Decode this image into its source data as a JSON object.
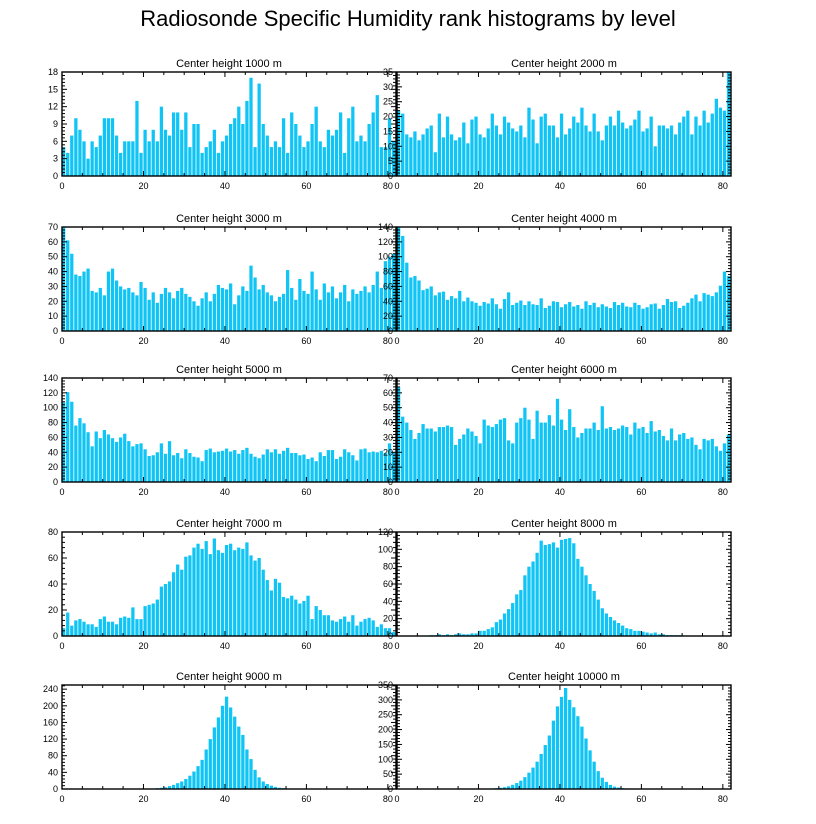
{
  "figure": {
    "title": "Radiosonde Specific Humidity rank histograms by level"
  },
  "colors": {
    "bar": "#10C5F5",
    "axis": "#000000",
    "background": "#ffffff"
  },
  "chart_data": [
    {
      "type": "bar",
      "title": "Center height 1000 m",
      "xlim": [
        0,
        82
      ],
      "ylim": [
        0,
        18
      ],
      "xticks": [
        0,
        20,
        40,
        60,
        80
      ],
      "yticks": [
        0,
        3,
        6,
        9,
        12,
        15,
        18
      ],
      "values": [
        5,
        4,
        7,
        10,
        8,
        6,
        3,
        6,
        5,
        7,
        10,
        10,
        10,
        7,
        4,
        6,
        6,
        6,
        13,
        4,
        8,
        6,
        8,
        6,
        12,
        8,
        7,
        11,
        11,
        8,
        11,
        5,
        9,
        9,
        4,
        5,
        6,
        8,
        4,
        6,
        7,
        9,
        10,
        12,
        9,
        13,
        17,
        5,
        16,
        9,
        7,
        5,
        6,
        5,
        10,
        4,
        11,
        9,
        7,
        5,
        6,
        9,
        12,
        6,
        5,
        8,
        7,
        8,
        11,
        4,
        10,
        12,
        6,
        7,
        6,
        9,
        11,
        14,
        5,
        5,
        10,
        6
      ]
    },
    {
      "type": "bar",
      "title": "Center height 2000 m",
      "xlim": [
        0,
        82
      ],
      "ylim": [
        0,
        35
      ],
      "xticks": [
        0,
        20,
        40,
        60,
        80
      ],
      "yticks": [
        0,
        5,
        10,
        15,
        20,
        25,
        30,
        35
      ],
      "values": [
        22,
        21,
        14,
        13,
        15,
        12,
        14,
        16,
        17,
        8,
        21,
        13,
        20,
        14,
        12,
        13,
        18,
        11,
        19,
        20,
        14,
        13,
        16,
        21,
        17,
        14,
        20,
        18,
        16,
        15,
        17,
        13,
        23,
        19,
        11,
        20,
        21,
        17,
        17,
        13,
        21,
        14,
        16,
        20,
        18,
        23,
        17,
        15,
        21,
        15,
        12,
        17,
        20,
        17,
        22,
        18,
        16,
        17,
        19,
        22,
        15,
        16,
        20,
        10,
        17,
        17,
        16,
        17,
        14,
        18,
        20,
        22,
        14,
        20,
        17,
        22,
        18,
        21,
        26,
        23,
        22,
        35
      ]
    },
    {
      "type": "bar",
      "title": "Center height 3000 m",
      "xlim": [
        0,
        82
      ],
      "ylim": [
        0,
        70
      ],
      "xticks": [
        0,
        20,
        40,
        60,
        80
      ],
      "yticks": [
        0,
        10,
        20,
        30,
        40,
        50,
        60,
        70
      ],
      "values": [
        70,
        61,
        52,
        38,
        37,
        40,
        42,
        27,
        26,
        29,
        24,
        40,
        42,
        34,
        30,
        28,
        29,
        26,
        24,
        33,
        29,
        21,
        26,
        19,
        25,
        29,
        26,
        22,
        27,
        29,
        25,
        23,
        20,
        17,
        22,
        26,
        20,
        25,
        31,
        29,
        28,
        32,
        18,
        24,
        30,
        27,
        44,
        36,
        28,
        31,
        26,
        24,
        20,
        23,
        25,
        41,
        29,
        21,
        35,
        27,
        25,
        40,
        28,
        21,
        32,
        26,
        30,
        22,
        26,
        31,
        20,
        28,
        25,
        27,
        30,
        26,
        31,
        40,
        29,
        47,
        50,
        52
      ]
    },
    {
      "type": "bar",
      "title": "Center height 4000 m",
      "xlim": [
        0,
        82
      ],
      "ylim": [
        0,
        140
      ],
      "xticks": [
        0,
        20,
        40,
        60,
        80
      ],
      "yticks": [
        0,
        20,
        40,
        60,
        80,
        100,
        120,
        140
      ],
      "values": [
        140,
        128,
        92,
        72,
        74,
        68,
        55,
        57,
        60,
        48,
        52,
        53,
        42,
        47,
        44,
        54,
        40,
        45,
        40,
        38,
        34,
        39,
        37,
        44,
        36,
        30,
        43,
        52,
        35,
        38,
        41,
        35,
        40,
        36,
        35,
        44,
        31,
        34,
        40,
        39,
        32,
        36,
        39,
        33,
        35,
        30,
        40,
        35,
        38,
        32,
        36,
        33,
        31,
        39,
        35,
        38,
        33,
        32,
        38,
        35,
        30,
        32,
        36,
        37,
        30,
        35,
        43,
        39,
        40,
        31,
        34,
        38,
        44,
        49,
        40,
        51,
        49,
        47,
        52,
        61,
        80,
        74
      ]
    },
    {
      "type": "bar",
      "title": "Center height 5000 m",
      "xlim": [
        0,
        82
      ],
      "ylim": [
        0,
        140
      ],
      "xticks": [
        0,
        20,
        40,
        60,
        80
      ],
      "yticks": [
        0,
        20,
        40,
        60,
        80,
        100,
        120,
        140
      ],
      "values": [
        107,
        121,
        108,
        76,
        86,
        79,
        67,
        48,
        68,
        59,
        70,
        64,
        59,
        54,
        60,
        65,
        55,
        48,
        51,
        52,
        44,
        35,
        36,
        40,
        52,
        38,
        55,
        36,
        39,
        32,
        44,
        39,
        34,
        33,
        28,
        43,
        45,
        40,
        41,
        42,
        45,
        41,
        43,
        38,
        43,
        46,
        38,
        34,
        32,
        37,
        44,
        40,
        44,
        38,
        42,
        46,
        39,
        39,
        36,
        37,
        31,
        33,
        28,
        40,
        35,
        43,
        43,
        31,
        34,
        44,
        40,
        36,
        29,
        44,
        45,
        40,
        41,
        40,
        42,
        39,
        52,
        40
      ]
    },
    {
      "type": "bar",
      "title": "Center height 6000 m",
      "xlim": [
        0,
        82
      ],
      "ylim": [
        0,
        70
      ],
      "xticks": [
        0,
        20,
        40,
        60,
        80
      ],
      "yticks": [
        0,
        10,
        20,
        30,
        40,
        50,
        60,
        70
      ],
      "values": [
        64,
        44,
        40,
        35,
        29,
        33,
        39,
        36,
        36,
        34,
        37,
        37,
        38,
        37,
        25,
        29,
        32,
        36,
        34,
        31,
        26,
        42,
        38,
        37,
        39,
        42,
        43,
        28,
        26,
        40,
        43,
        50,
        42,
        29,
        48,
        40,
        40,
        45,
        38,
        56,
        42,
        35,
        49,
        37,
        30,
        33,
        36,
        36,
        40,
        35,
        51,
        36,
        37,
        35,
        36,
        38,
        37,
        32,
        40,
        36,
        37,
        33,
        41,
        34,
        35,
        31,
        28,
        36,
        28,
        32,
        33,
        29,
        30,
        25,
        22,
        29,
        28,
        29,
        24,
        21,
        26,
        32
      ]
    },
    {
      "type": "bar",
      "title": "Center height 7000 m",
      "xlim": [
        0,
        82
      ],
      "ylim": [
        0,
        80
      ],
      "xticks": [
        0,
        20,
        40,
        60,
        80
      ],
      "yticks": [
        0,
        20,
        40,
        60,
        80
      ],
      "values": [
        6,
        18,
        8,
        12,
        13,
        11,
        9,
        9,
        7,
        13,
        15,
        11,
        11,
        9,
        14,
        15,
        14,
        22,
        13,
        13,
        23,
        24,
        25,
        28,
        38,
        40,
        42,
        49,
        55,
        51,
        61,
        62,
        68,
        71,
        67,
        73,
        63,
        75,
        66,
        64,
        70,
        71,
        66,
        68,
        67,
        72,
        62,
        58,
        60,
        51,
        43,
        35,
        44,
        41,
        30,
        29,
        31,
        28,
        25,
        27,
        31,
        13,
        23,
        20,
        16,
        16,
        12,
        11,
        13,
        15,
        11,
        16,
        8,
        11,
        13,
        14,
        12,
        7,
        9,
        6,
        6,
        3
      ]
    },
    {
      "type": "bar",
      "title": "Center height 8000 m",
      "xlim": [
        0,
        82
      ],
      "ylim": [
        0,
        120
      ],
      "xticks": [
        0,
        20,
        40,
        60,
        80
      ],
      "yticks": [
        0,
        20,
        40,
        60,
        80,
        100,
        120
      ],
      "values": [
        0,
        0,
        0,
        0,
        0,
        0,
        0,
        0,
        1,
        1,
        2,
        1,
        2,
        1,
        2,
        3,
        2,
        2,
        3,
        3,
        6,
        6,
        8,
        10,
        16,
        19,
        26,
        31,
        38,
        48,
        53,
        70,
        80,
        86,
        96,
        110,
        105,
        106,
        108,
        102,
        111,
        112,
        113,
        107,
        89,
        80,
        70,
        60,
        52,
        42,
        32,
        26,
        22,
        18,
        15,
        12,
        9,
        8,
        6,
        6,
        5,
        4,
        3,
        4,
        2,
        2,
        1,
        1,
        1,
        1,
        0,
        0,
        0,
        0,
        0,
        0,
        0,
        0,
        0,
        0,
        0,
        0
      ]
    },
    {
      "type": "bar",
      "title": "Center height 9000 m",
      "xlim": [
        0,
        82
      ],
      "ylim": [
        0,
        250
      ],
      "xticks": [
        0,
        20,
        40,
        60,
        80
      ],
      "yticks": [
        0,
        40,
        80,
        120,
        160,
        200,
        240
      ],
      "values": [
        0,
        0,
        0,
        0,
        0,
        0,
        0,
        0,
        0,
        0,
        0,
        0,
        0,
        0,
        0,
        0,
        0,
        0,
        0,
        0,
        0,
        0,
        1,
        2,
        3,
        4,
        7,
        10,
        14,
        18,
        24,
        32,
        42,
        55,
        70,
        95,
        120,
        148,
        172,
        200,
        222,
        196,
        174,
        150,
        130,
        95,
        72,
        46,
        28,
        18,
        12,
        8,
        5,
        3,
        2,
        1,
        1,
        0,
        0,
        0,
        0,
        0,
        0,
        0,
        0,
        0,
        0,
        0,
        0,
        0,
        0,
        0,
        0,
        0,
        0,
        0,
        0,
        0,
        0,
        0,
        0,
        0
      ]
    },
    {
      "type": "bar",
      "title": "Center height 10000 m",
      "xlim": [
        0,
        82
      ],
      "ylim": [
        0,
        350
      ],
      "xticks": [
        0,
        20,
        40,
        60,
        80
      ],
      "yticks": [
        0,
        50,
        100,
        150,
        200,
        250,
        300,
        350
      ],
      "values": [
        0,
        0,
        0,
        0,
        0,
        0,
        0,
        0,
        0,
        0,
        0,
        0,
        0,
        0,
        0,
        0,
        0,
        0,
        0,
        0,
        0,
        0,
        1,
        2,
        3,
        4,
        6,
        9,
        14,
        20,
        28,
        40,
        55,
        72,
        92,
        118,
        148,
        180,
        230,
        278,
        310,
        340,
        300,
        275,
        245,
        210,
        170,
        130,
        92,
        60,
        38,
        24,
        14,
        8,
        5,
        3,
        2,
        1,
        0,
        0,
        0,
        0,
        0,
        0,
        0,
        0,
        0,
        0,
        0,
        0,
        0,
        0,
        0,
        0,
        0,
        0,
        0,
        0,
        0,
        0,
        0,
        0
      ]
    }
  ]
}
